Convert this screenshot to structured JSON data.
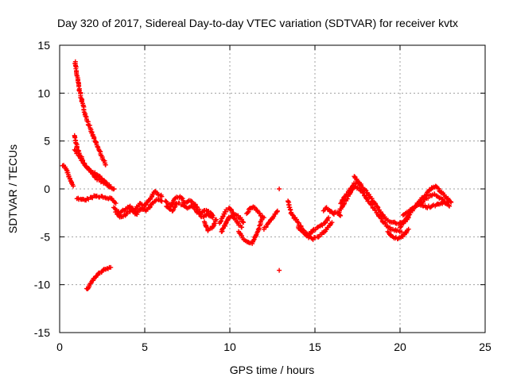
{
  "chart_data": {
    "type": "scatter",
    "title": "Day 320 of 2017, Sidereal Day-to-day VTEC variation (SDTVAR) for receiver kvtx",
    "xlabel": "GPS time / hours",
    "ylabel": "SDTVAR / TECUs",
    "xlim": [
      0,
      25
    ],
    "ylim": [
      -15,
      15
    ],
    "xticks": [
      "0",
      "5",
      "10",
      "15",
      "20",
      "25"
    ],
    "yticks": [
      "15",
      "10",
      "5",
      "0",
      "-5",
      "-10",
      "-15"
    ],
    "xtick_values": [
      0,
      5,
      10,
      15,
      20,
      25
    ],
    "ytick_values": [
      15,
      10,
      5,
      0,
      -5,
      -10,
      -15
    ],
    "grid": true,
    "marker": "+",
    "series": [
      {
        "name": "SDTVAR",
        "color": "#ff0000",
        "segments": [
          {
            "x": [
              0.2,
              0.35,
              0.5,
              0.65,
              0.8
            ],
            "y": [
              2.5,
              2.2,
              1.5,
              0.8,
              0.3
            ]
          },
          {
            "x": [
              0.9,
              1.0,
              1.2,
              1.4,
              1.6,
              1.9,
              2.2,
              2.5,
              2.7
            ],
            "y": [
              13.3,
              12.0,
              10.0,
              8.5,
              7.3,
              5.8,
              4.5,
              3.3,
              2.5
            ]
          },
          {
            "x": [
              0.9,
              1.0,
              1.2,
              1.4,
              1.6,
              1.9,
              2.2,
              2.5,
              2.8,
              3.0
            ],
            "y": [
              5.5,
              4.5,
              3.5,
              2.8,
              2.2,
              1.8,
              1.5,
              1.0,
              0.5,
              0.2
            ]
          },
          {
            "x": [
              0.9,
              1.2,
              1.5,
              1.8,
              2.1,
              2.4,
              2.7,
              3.0,
              3.2
            ],
            "y": [
              4.0,
              3.2,
              2.5,
              1.8,
              1.2,
              0.8,
              0.5,
              0.2,
              0.0
            ]
          },
          {
            "x": [
              1.0,
              1.5,
              2.0,
              2.5,
              3.0,
              3.3
            ],
            "y": [
              -1.0,
              -1.2,
              -0.8,
              -0.8,
              -1.0,
              -1.5
            ]
          },
          {
            "x": [
              1.6,
              1.8,
              2.0,
              2.2,
              2.5,
              2.8,
              3.0
            ],
            "y": [
              -10.5,
              -9.9,
              -9.4,
              -9.0,
              -8.6,
              -8.3,
              -8.2
            ]
          },
          {
            "x": [
              3.2,
              3.5,
              3.8,
              4.1,
              4.4,
              4.7,
              5.0,
              5.3,
              5.6,
              6.0
            ],
            "y": [
              -2.0,
              -2.5,
              -2.2,
              -1.8,
              -2.3,
              -1.5,
              -1.8,
              -1.0,
              -0.3,
              -0.8
            ]
          },
          {
            "x": [
              3.3,
              3.6,
              3.9,
              4.2,
              4.5,
              4.8,
              5.1,
              5.4,
              5.7,
              6.0
            ],
            "y": [
              -2.5,
              -3.0,
              -2.6,
              -2.2,
              -2.7,
              -2.0,
              -2.3,
              -1.6,
              -1.0,
              -1.3
            ]
          },
          {
            "x": [
              6.2,
              6.5,
              6.8,
              7.1,
              7.4,
              7.7,
              8.0,
              8.3,
              8.6,
              8.9,
              9.0
            ],
            "y": [
              -1.2,
              -1.8,
              -1.0,
              -0.8,
              -1.5,
              -1.2,
              -1.8,
              -2.5,
              -2.2,
              -2.5,
              -2.8
            ]
          },
          {
            "x": [
              6.3,
              6.6,
              6.9,
              7.2,
              7.5,
              7.8,
              8.1,
              8.4,
              8.7,
              9.0
            ],
            "y": [
              -1.8,
              -2.3,
              -1.5,
              -1.6,
              -2.0,
              -1.8,
              -2.4,
              -3.0,
              -2.6,
              -3.0
            ]
          },
          {
            "x": [
              8.5,
              8.7,
              9.0,
              9.2
            ],
            "y": [
              -3.5,
              -4.3,
              -4.0,
              -3.2
            ]
          },
          {
            "x": [
              9.4,
              9.6,
              9.8,
              10.0,
              10.2,
              10.4,
              10.6,
              10.8
            ],
            "y": [
              -3.5,
              -2.8,
              -2.2,
              -2.0,
              -2.5,
              -2.8,
              -3.0,
              -3.5
            ]
          },
          {
            "x": [
              9.5,
              9.7,
              9.9,
              10.1,
              10.3,
              10.5,
              10.7
            ],
            "y": [
              -4.5,
              -3.8,
              -3.0,
              -2.8,
              -3.2,
              -3.6,
              -4.0
            ]
          },
          {
            "x": [
              10.5,
              10.7,
              10.9,
              11.1,
              11.3,
              11.5,
              11.7,
              11.9
            ],
            "y": [
              -4.5,
              -5.0,
              -5.4,
              -5.6,
              -5.7,
              -5.0,
              -4.2,
              -3.0
            ]
          },
          {
            "x": [
              11.0,
              11.2,
              11.4,
              11.6,
              11.8,
              12.0
            ],
            "y": [
              -2.5,
              -2.0,
              -1.8,
              -2.3,
              -2.7,
              -3.0
            ]
          },
          {
            "x": [
              12.0,
              12.2,
              12.4,
              12.6,
              12.8
            ],
            "y": [
              -4.2,
              -3.8,
              -3.2,
              -2.8,
              -2.3
            ]
          },
          {
            "x": [
              12.9
            ],
            "y": [
              0.0
            ]
          },
          {
            "x": [
              12.9
            ],
            "y": [
              -8.5
            ]
          },
          {
            "x": [
              13.4,
              13.6,
              13.8,
              14.0,
              14.2,
              14.4,
              14.6,
              14.8,
              15.0,
              15.2,
              15.4,
              15.6,
              15.8
            ],
            "y": [
              -1.2,
              -2.5,
              -3.0,
              -3.5,
              -4.0,
              -4.5,
              -4.8,
              -4.5,
              -4.2,
              -4.0,
              -3.8,
              -3.5,
              -3.0
            ]
          },
          {
            "x": [
              14.0,
              14.3,
              14.6,
              14.9,
              15.2,
              15.5,
              15.8,
              16.0
            ],
            "y": [
              -4.0,
              -4.5,
              -5.0,
              -5.2,
              -5.0,
              -4.6,
              -4.0,
              -3.5
            ]
          },
          {
            "x": [
              15.5,
              15.7,
              15.9,
              16.1,
              16.3,
              16.5
            ],
            "y": [
              -2.2,
              -2.0,
              -2.3,
              -2.6,
              -2.4,
              -2.8
            ]
          },
          {
            "x": [
              16.5,
              16.7,
              16.9,
              17.1,
              17.3,
              17.5,
              17.7,
              17.9,
              18.1,
              18.4,
              18.7,
              19.0,
              19.3,
              19.6,
              19.9,
              20.2,
              20.5
            ],
            "y": [
              -1.5,
              -1.0,
              -0.5,
              0.0,
              0.5,
              0.7,
              0.4,
              0.0,
              -0.5,
              -1.2,
              -2.0,
              -2.8,
              -3.3,
              -3.5,
              -3.6,
              -3.5,
              -3.0
            ]
          },
          {
            "x": [
              16.4,
              16.6,
              16.8,
              17.0,
              17.2,
              17.4,
              17.6,
              17.8,
              18.0,
              18.3,
              18.6,
              18.9,
              19.2,
              19.5,
              19.8,
              20.1
            ],
            "y": [
              -2.5,
              -1.8,
              -1.2,
              -0.6,
              0.0,
              0.2,
              0.0,
              -0.4,
              -0.9,
              -1.6,
              -2.4,
              -3.2,
              -3.8,
              -4.2,
              -4.4,
              -4.5
            ]
          },
          {
            "x": [
              17.3,
              17.5,
              17.7
            ],
            "y": [
              1.4,
              0.8,
              0.5
            ]
          },
          {
            "x": [
              19.3,
              19.5,
              19.7,
              19.9,
              20.1,
              20.3,
              20.5
            ],
            "y": [
              -4.5,
              -4.9,
              -5.1,
              -5.2,
              -5.0,
              -4.6,
              -4.2
            ]
          },
          {
            "x": [
              20.0,
              20.3,
              20.6,
              20.9,
              21.2,
              21.5,
              21.8,
              22.1,
              22.4,
              22.7,
              23.0
            ],
            "y": [
              -4.0,
              -3.2,
              -2.5,
              -1.8,
              -1.2,
              -0.6,
              0.0,
              0.3,
              -0.3,
              -0.9,
              -1.4
            ]
          },
          {
            "x": [
              20.2,
              20.5,
              20.8,
              21.1,
              21.4,
              21.7,
              22.0,
              22.3,
              22.6,
              22.9
            ],
            "y": [
              -2.8,
              -2.4,
              -2.0,
              -1.6,
              -1.2,
              -0.8,
              -0.6,
              -0.9,
              -1.3,
              -1.8
            ]
          },
          {
            "x": [
              21.0,
              21.3,
              21.6,
              21.9,
              22.2,
              22.5,
              22.8
            ],
            "y": [
              -1.5,
              -1.7,
              -1.9,
              -1.8,
              -1.6,
              -1.5,
              -1.4
            ]
          }
        ]
      }
    ]
  }
}
